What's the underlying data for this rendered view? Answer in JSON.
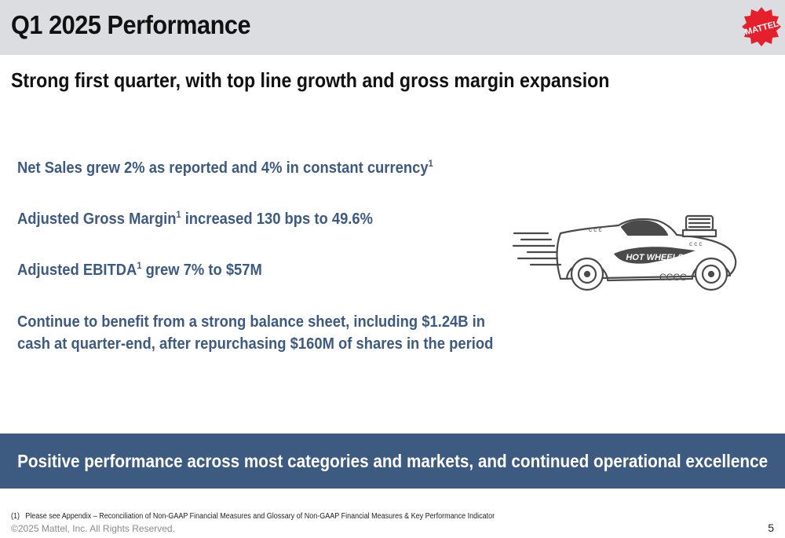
{
  "header": {
    "title": "Q1 2025 Performance",
    "logo_text": "MATTEL",
    "logo_color": "#e4202c"
  },
  "subtitle": "Strong first quarter, with top line growth and gross margin expansion",
  "bullets": [
    {
      "text": "Net Sales grew 2% as reported and 4% in constant currency",
      "sup": "1"
    },
    {
      "pre": "Adjusted Gross Margin",
      "sup": "1",
      "post": " increased 130 bps to 49.6%"
    },
    {
      "pre": "Adjusted EBITDA",
      "sup": "1",
      "post": " grew 7% to $57M"
    },
    {
      "line1": "Continue to benefit from a strong balance sheet, including $1.24B in",
      "line2": "cash at quarter-end, after repurchasing $160M of shares in the period"
    }
  ],
  "illustration": {
    "icon": "hot-wheels-car-icon",
    "text": "HOT WHEELS"
  },
  "banner": {
    "text": "Positive performance across most categories and markets, and continued operational excellence",
    "color": "#3d5a80"
  },
  "footer": {
    "footnote_number": "(1)",
    "footnote_text": "Please see Appendix – Reconciliation of Non-GAAP Financial Measures and Glossary of Non-GAAP Financial Measures & Key Performance Indicator",
    "copyright": "©2025 Mattel, Inc.  All Rights Reserved.",
    "page_number": "5"
  }
}
